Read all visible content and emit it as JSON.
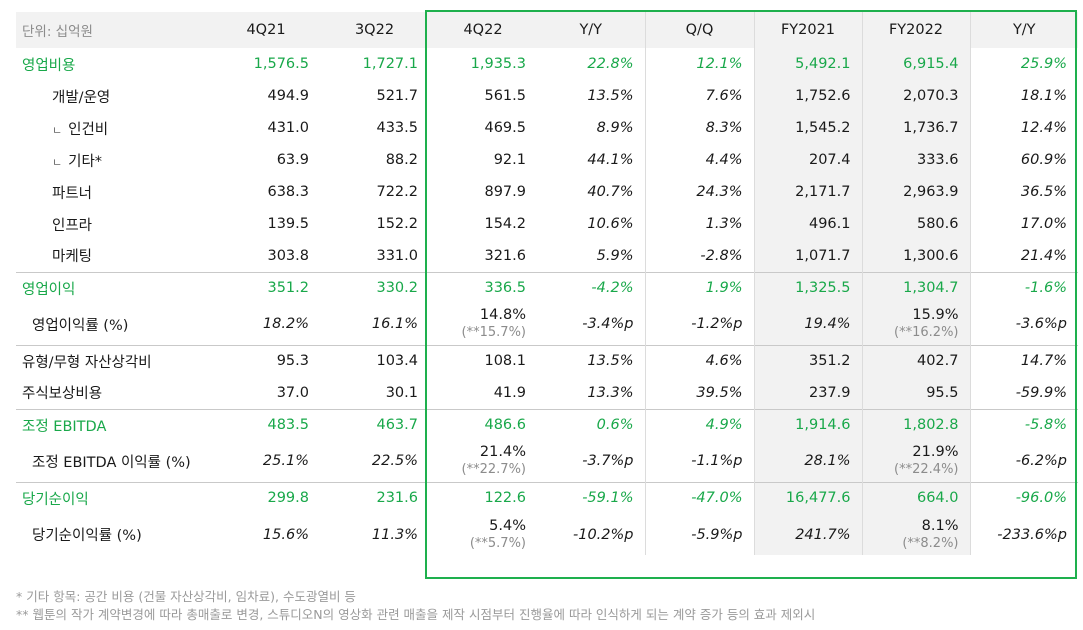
{
  "header": {
    "unit": "단위: 십억원",
    "columns": [
      "4Q21",
      "3Q22",
      "4Q22",
      "Y/Y",
      "Q/Q",
      "FY2021",
      "FY2022",
      "Y/Y"
    ]
  },
  "rows": [
    {
      "label": "영업비용",
      "values": [
        "1,576.5",
        "1,727.1",
        "1,935.3",
        "22.8%",
        "12.1%",
        "5,492.1",
        "6,915.4",
        "25.9%"
      ]
    },
    {
      "label": "개발/운영",
      "values": [
        "494.9",
        "521.7",
        "561.5",
        "13.5%",
        "7.6%",
        "1,752.6",
        "2,070.3",
        "18.1%"
      ]
    },
    {
      "mark": "ㄴ",
      "label": "인건비",
      "values": [
        "431.0",
        "433.5",
        "469.5",
        "8.9%",
        "8.3%",
        "1,545.2",
        "1,736.7",
        "12.4%"
      ]
    },
    {
      "mark": "ㄴ",
      "label": "기타*",
      "values": [
        "63.9",
        "88.2",
        "92.1",
        "44.1%",
        "4.4%",
        "207.4",
        "333.6",
        "60.9%"
      ]
    },
    {
      "label": "파트너",
      "values": [
        "638.3",
        "722.2",
        "897.9",
        "40.7%",
        "24.3%",
        "2,171.7",
        "2,963.9",
        "36.5%"
      ]
    },
    {
      "label": "인프라",
      "values": [
        "139.5",
        "152.2",
        "154.2",
        "10.6%",
        "1.3%",
        "496.1",
        "580.6",
        "17.0%"
      ]
    },
    {
      "label": "마케팅",
      "values": [
        "303.8",
        "331.0",
        "321.6",
        "5.9%",
        "-2.8%",
        "1,071.7",
        "1,300.6",
        "21.4%"
      ]
    },
    {
      "label": "영업이익",
      "values": [
        "351.2",
        "330.2",
        "336.5",
        "-4.2%",
        "1.9%",
        "1,325.5",
        "1,304.7",
        "-1.6%"
      ]
    },
    {
      "label": "영업이익률 (%)",
      "values": [
        "18.2%",
        "16.1%",
        "14.8%",
        "-3.4%p",
        "-1.2%p",
        "19.4%",
        "15.9%",
        "-3.6%p"
      ],
      "notes": {
        "q": "(**15.7%)",
        "fy": "(**16.2%)"
      }
    },
    {
      "label": "유형/무형 자산상각비",
      "values": [
        "95.3",
        "103.4",
        "108.1",
        "13.5%",
        "4.6%",
        "351.2",
        "402.7",
        "14.7%"
      ]
    },
    {
      "label": "주식보상비용",
      "values": [
        "37.0",
        "30.1",
        "41.9",
        "13.3%",
        "39.5%",
        "237.9",
        "95.5",
        "-59.9%"
      ]
    },
    {
      "label": "조정 EBITDA",
      "values": [
        "483.5",
        "463.7",
        "486.6",
        "0.6%",
        "4.9%",
        "1,914.6",
        "1,802.8",
        "-5.8%"
      ]
    },
    {
      "label": "조정 EBITDA 이익률 (%)",
      "values": [
        "25.1%",
        "22.5%",
        "21.4%",
        "-3.7%p",
        "-1.1%p",
        "28.1%",
        "21.9%",
        "-6.2%p"
      ],
      "notes": {
        "q": "(**22.7%)",
        "fy": "(**22.4%)"
      }
    },
    {
      "label": "당기순이익",
      "values": [
        "299.8",
        "231.6",
        "122.6",
        "-59.1%",
        "-47.0%",
        "16,477.6",
        "664.0",
        "-96.0%"
      ]
    },
    {
      "label": "당기순이익률 (%)",
      "values": [
        "15.6%",
        "11.3%",
        "5.4%",
        "-10.2%p",
        "-5.9%p",
        "241.7%",
        "8.1%",
        "-233.6%p"
      ],
      "notes": {
        "q": "(**5.7%)",
        "fy": "(**8.2%)"
      }
    }
  ],
  "footnotes": [
    "* 기타 항목: 공간 비용 (건물 자산상각비, 임차료), 수도광열비 등",
    "** 웹툰의 작가 계약변경에 따라 총매출로 변경, 스튜디오N의 영상화 관련 매출을 제작 시점부터 진행율에 따라 인식하게 되는 계약 증가 등의 효과 제외시"
  ],
  "colors": {
    "accent": "#19a84a",
    "highlight_border": "#1eb04d",
    "header_bg": "#f2f2f2",
    "note": "#8c8c8c"
  }
}
